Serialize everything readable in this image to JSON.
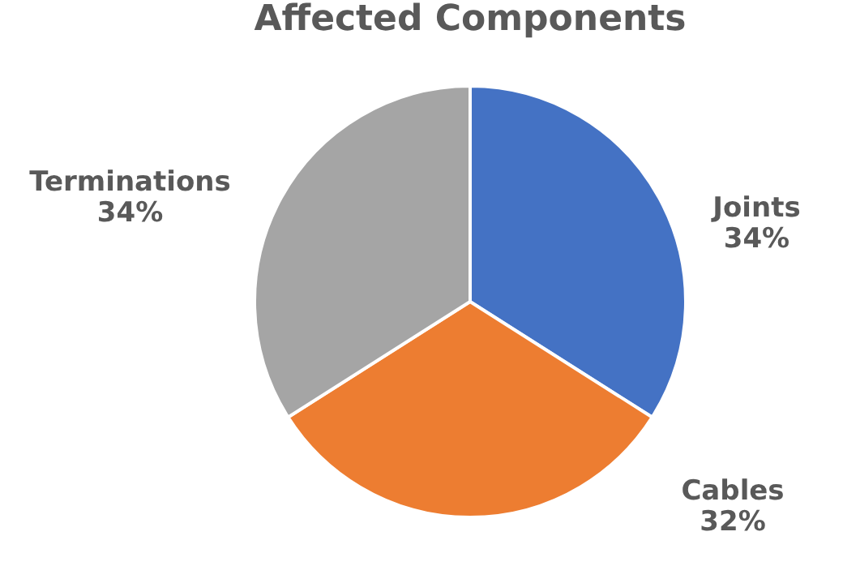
{
  "chart_data": {
    "type": "pie",
    "title": "Affected Components",
    "categories": [
      "Joints",
      "Cables",
      "Terminations"
    ],
    "values": [
      34,
      32,
      34
    ],
    "value_labels": [
      "34%",
      "32%",
      "34%"
    ],
    "colors": [
      "#4472c4",
      "#ed7d31",
      "#a5a5a5"
    ],
    "legend": false
  }
}
